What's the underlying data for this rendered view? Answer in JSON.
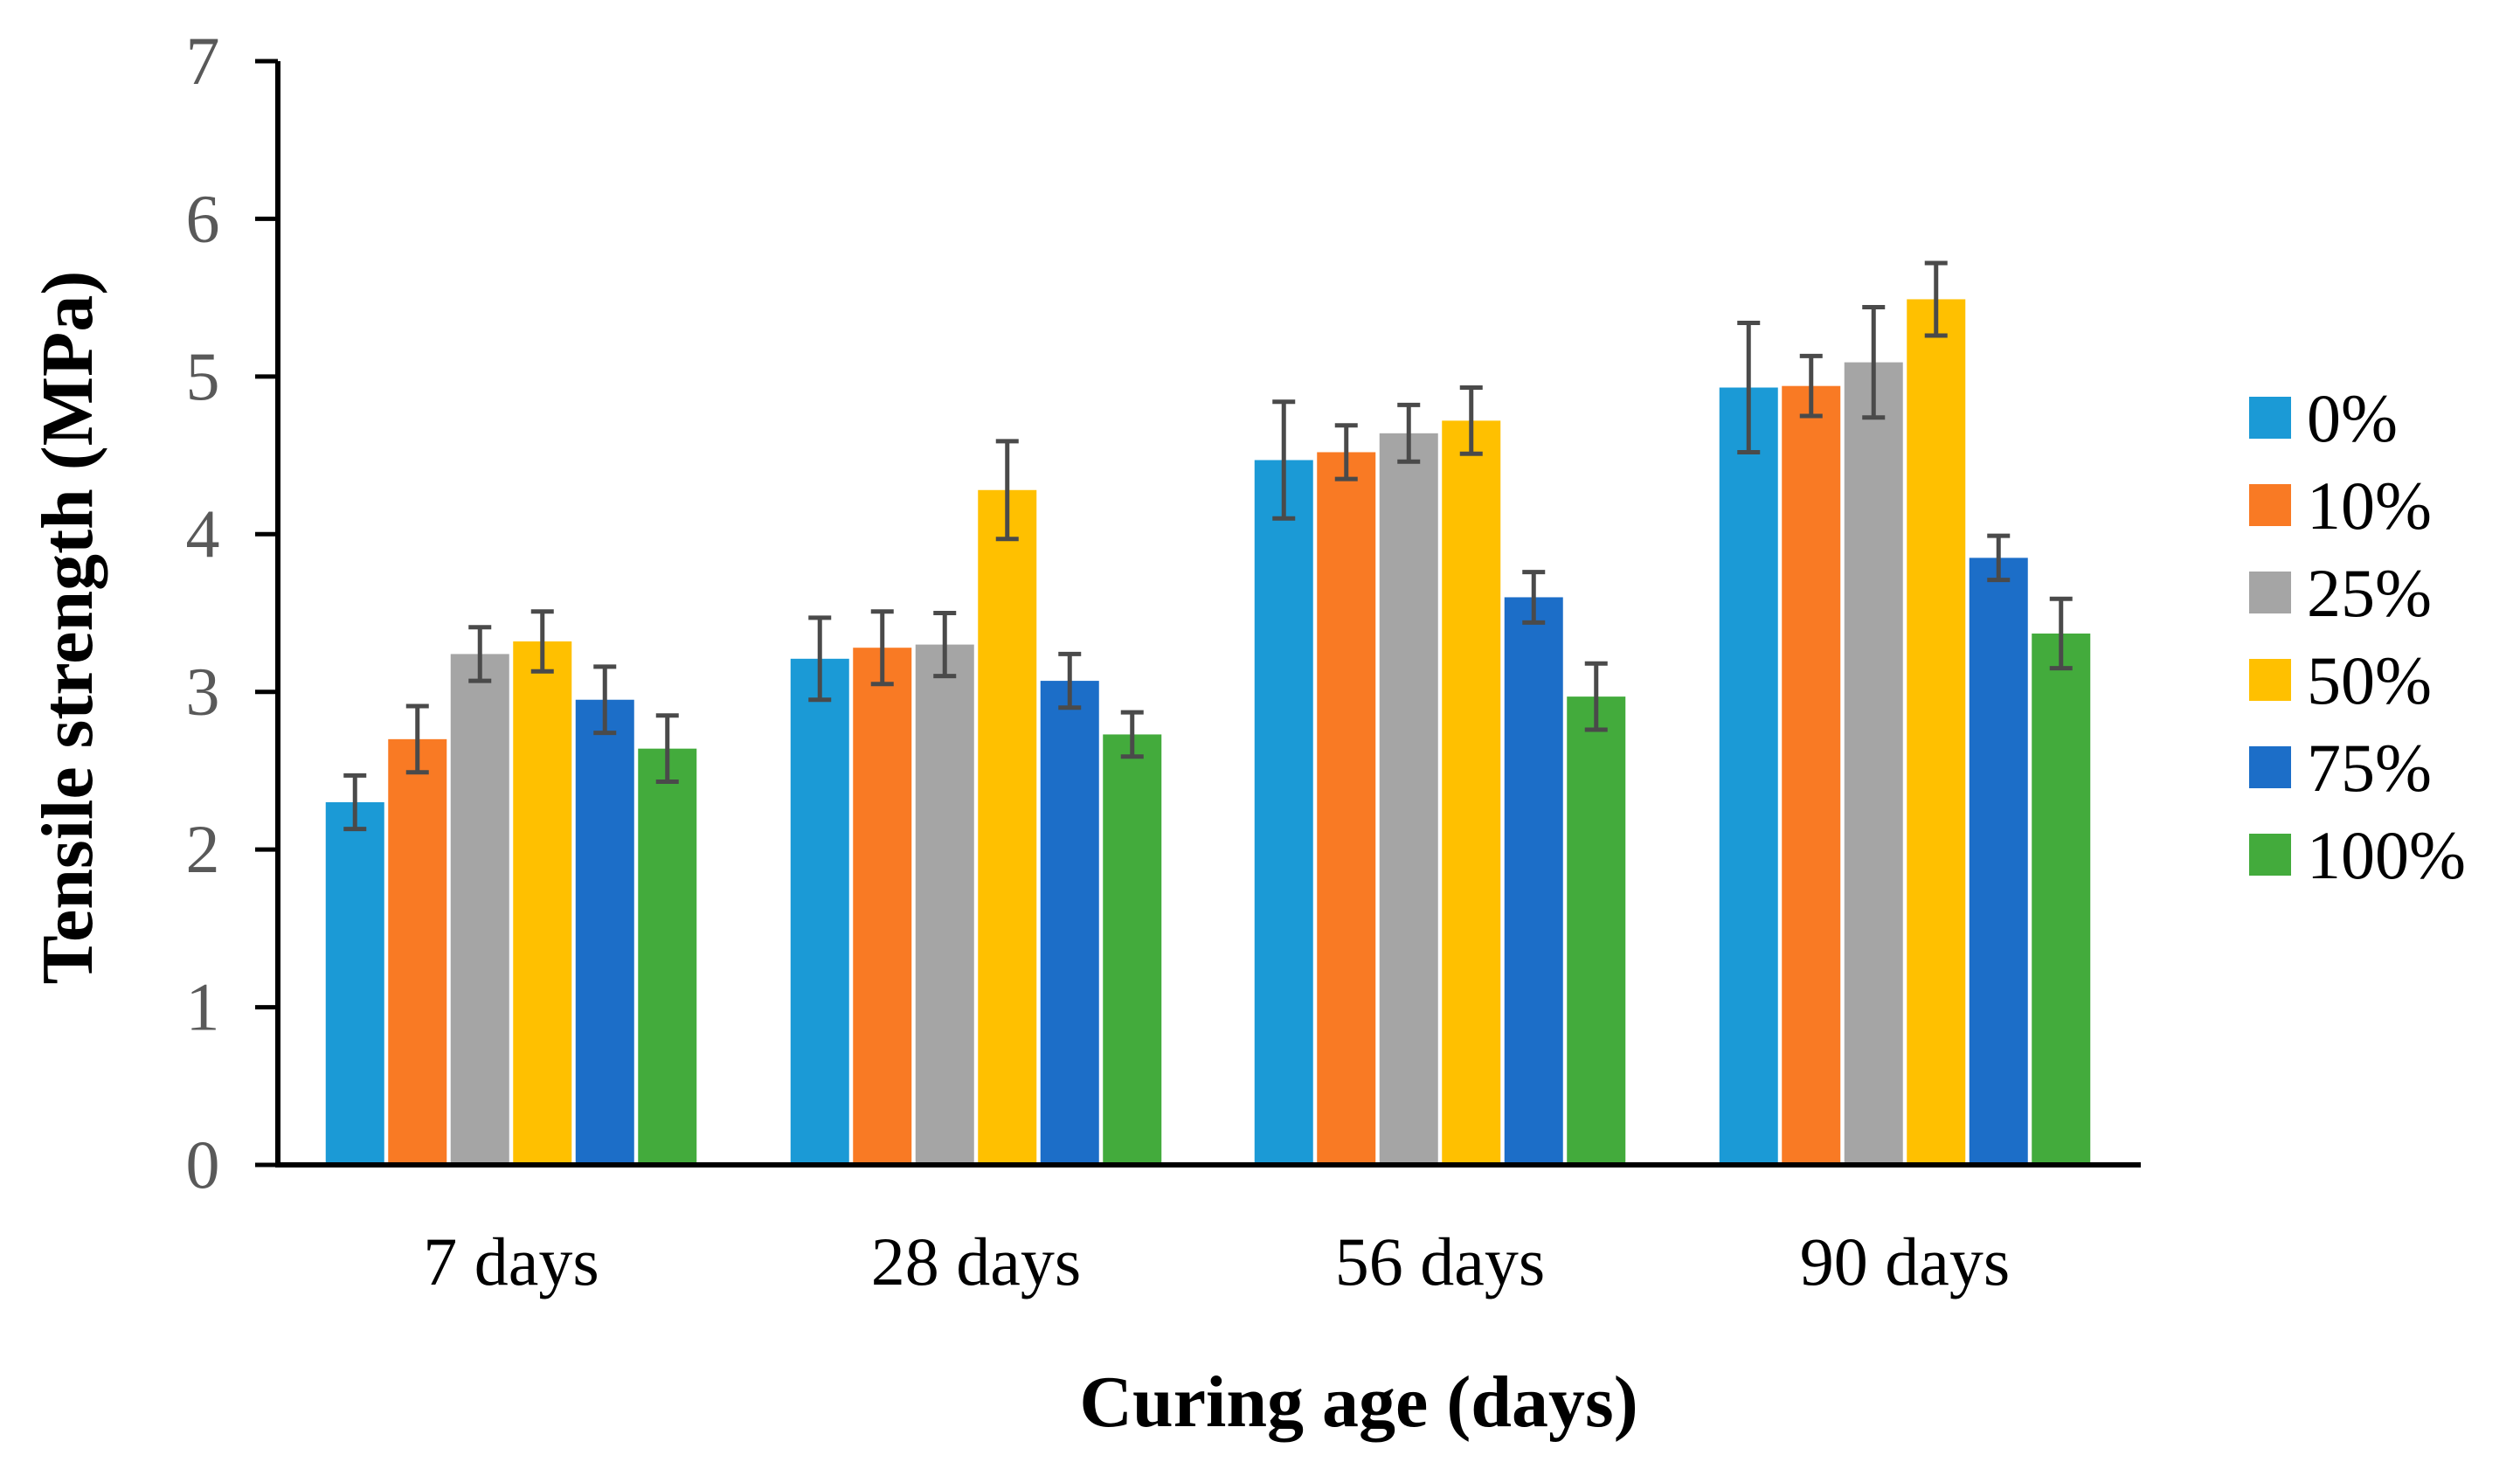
{
  "chart_data": {
    "type": "bar",
    "title": "",
    "xlabel": "Curing age (days)",
    "ylabel": "Tensile strength (MPa)",
    "ylim": [
      0,
      7
    ],
    "yticks": [
      0,
      1,
      2,
      3,
      4,
      5,
      6,
      7
    ],
    "grid": false,
    "legend_position": "right",
    "categories": [
      "7 days",
      "28 days",
      "56 days",
      "90 days"
    ],
    "series": [
      {
        "name": "0%",
        "color": "#1B9AD6",
        "values": [
          2.3,
          3.21,
          4.47,
          4.93
        ],
        "errors": [
          0.17,
          0.26,
          0.37,
          0.41
        ]
      },
      {
        "name": "10%",
        "color": "#F97A24",
        "values": [
          2.7,
          3.28,
          4.52,
          4.94
        ],
        "errors": [
          0.21,
          0.23,
          0.17,
          0.19
        ]
      },
      {
        "name": "25%",
        "color": "#A5A5A5",
        "values": [
          3.24,
          3.3,
          4.64,
          5.09
        ],
        "errors": [
          0.17,
          0.2,
          0.18,
          0.35
        ]
      },
      {
        "name": "50%",
        "color": "#FFC000",
        "values": [
          3.32,
          4.28,
          4.72,
          5.49
        ],
        "errors": [
          0.19,
          0.31,
          0.21,
          0.23
        ]
      },
      {
        "name": "75%",
        "color": "#1C6EC8",
        "values": [
          2.95,
          3.07,
          3.6,
          3.85
        ],
        "errors": [
          0.21,
          0.17,
          0.16,
          0.14
        ]
      },
      {
        "name": "100%",
        "color": "#43AB3C",
        "values": [
          2.64,
          2.73,
          2.97,
          3.37
        ],
        "errors": [
          0.21,
          0.14,
          0.21,
          0.22
        ]
      }
    ]
  }
}
